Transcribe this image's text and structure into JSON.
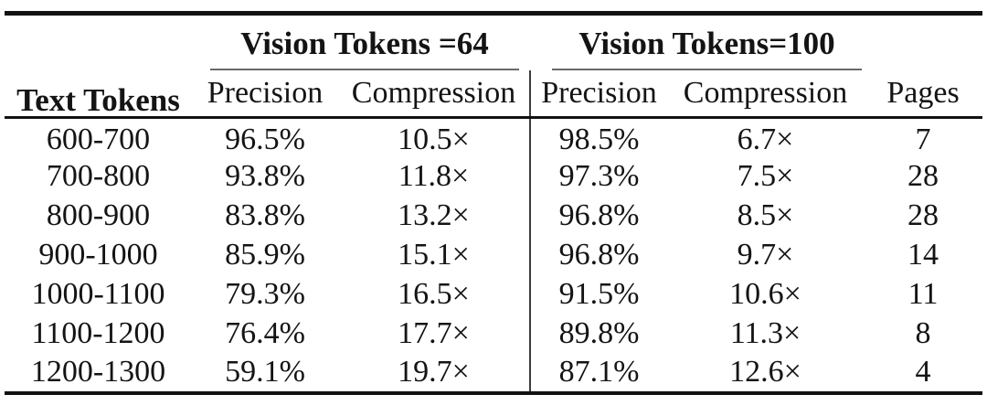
{
  "table": {
    "corner_header": "Text Tokens",
    "groups": [
      {
        "label": "Vision Tokens =64",
        "sub_headers": [
          "Precision",
          "Compression"
        ]
      },
      {
        "label": "Vision Tokens=100",
        "sub_headers": [
          "Precision",
          "Compression"
        ]
      }
    ],
    "pages_header": "Pages",
    "rows": [
      [
        "600-700",
        "96.5%",
        "10.5×",
        "98.5%",
        "6.7×",
        "7"
      ],
      [
        "700-800",
        "93.8%",
        "11.8×",
        "97.3%",
        "7.5×",
        "28"
      ],
      [
        "800-900",
        "83.8%",
        "13.2×",
        "96.8%",
        "8.5×",
        "28"
      ],
      [
        "900-1000",
        "85.9%",
        "15.1×",
        "96.8%",
        "9.7×",
        "14"
      ],
      [
        "1000-1100",
        "79.3%",
        "16.5×",
        "91.5%",
        "10.6×",
        "11"
      ],
      [
        "1100-1200",
        "76.4%",
        "17.7×",
        "89.8%",
        "11.3×",
        "8"
      ],
      [
        "1200-1300",
        "59.1%",
        "19.7×",
        "87.1%",
        "12.6×",
        "4"
      ]
    ],
    "colors": {
      "text": "#141414",
      "heavy_rule": "#121212",
      "cmidrule": "#6a6a6a",
      "divider": "#3c3c3c",
      "background": "#ffffff"
    }
  },
  "chart_data": {
    "type": "table",
    "title": "",
    "columns": [
      "Text Tokens",
      "Precision (Vision Tokens =64)",
      "Compression (Vision Tokens =64)",
      "Precision (Vision Tokens=100)",
      "Compression (Vision Tokens=100)",
      "Pages"
    ],
    "rows": [
      [
        "600-700",
        "96.5%",
        "10.5×",
        "98.5%",
        "6.7×",
        "7"
      ],
      [
        "700-800",
        "93.8%",
        "11.8×",
        "97.3%",
        "7.5×",
        "28"
      ],
      [
        "800-900",
        "83.8%",
        "13.2×",
        "96.8%",
        "8.5×",
        "28"
      ],
      [
        "900-1000",
        "85.9%",
        "15.1×",
        "96.8%",
        "9.7×",
        "14"
      ],
      [
        "1000-1100",
        "79.3%",
        "16.5×",
        "91.5%",
        "10.6×",
        "11"
      ],
      [
        "1100-1200",
        "76.4%",
        "17.7×",
        "89.8%",
        "11.3×",
        "8"
      ],
      [
        "1200-1300",
        "59.1%",
        "19.7×",
        "87.1%",
        "12.6×",
        "4"
      ]
    ]
  }
}
